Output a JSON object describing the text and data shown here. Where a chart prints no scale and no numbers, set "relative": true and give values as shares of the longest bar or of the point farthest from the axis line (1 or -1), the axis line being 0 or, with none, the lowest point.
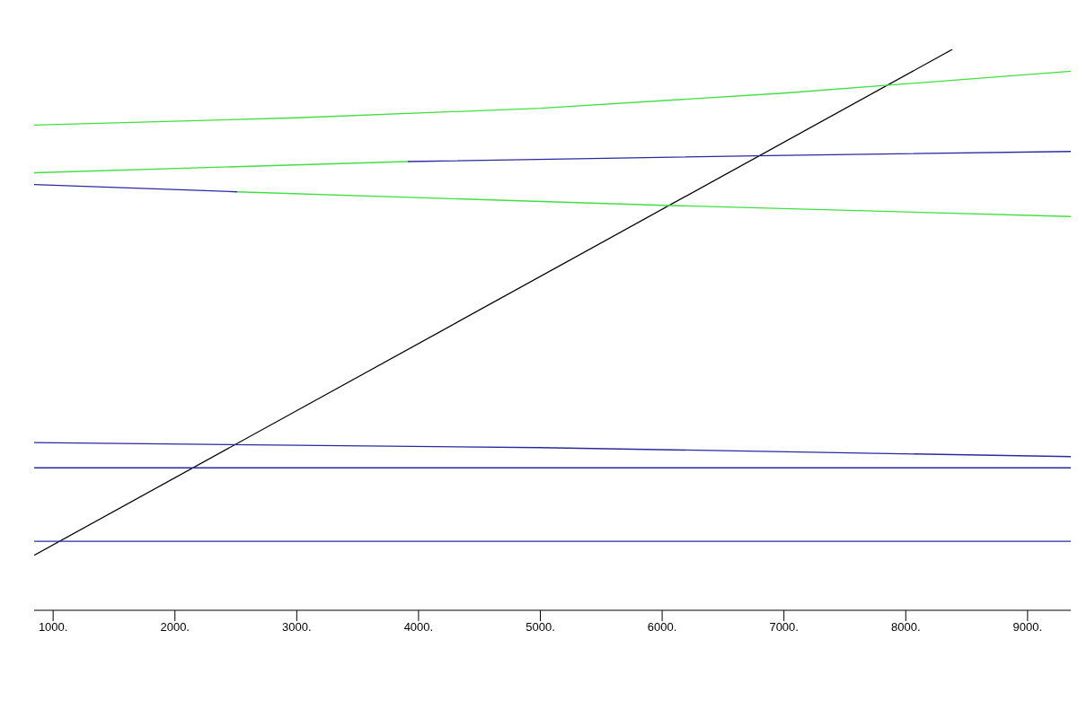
{
  "chart_data": {
    "type": "line",
    "relative": true,
    "xlim": [
      844,
      9355
    ],
    "xticks": [
      {
        "value": 1000,
        "label": "1000."
      },
      {
        "value": 2000,
        "label": "2000."
      },
      {
        "value": 3000,
        "label": "3000."
      },
      {
        "value": 4000,
        "label": "4000."
      },
      {
        "value": 5000,
        "label": "5000."
      },
      {
        "value": 6000,
        "label": "6000."
      },
      {
        "value": 7000,
        "label": "7000."
      },
      {
        "value": 8000,
        "label": "8000."
      },
      {
        "value": 9000,
        "label": "9000."
      }
    ],
    "grid": false,
    "marker": "none",
    "line_style": "solid",
    "series": [
      {
        "color": "#000000",
        "x": [
          844,
          8383
        ],
        "values": [
          0.098,
          1.0
        ]
      },
      {
        "color": "#40e040",
        "x": [
          844,
          3000,
          5000,
          7000,
          9355
        ],
        "values": [
          0.865,
          0.878,
          0.895,
          0.922,
          0.961
        ]
      },
      {
        "color": "#40e040",
        "x": [
          844,
          3910
        ],
        "values": [
          0.78,
          0.8
        ]
      },
      {
        "color": "#2a2aa0",
        "x": [
          3910,
          7000,
          9355
        ],
        "values": [
          0.8,
          0.811,
          0.818
        ]
      },
      {
        "color": "#2a2aa0",
        "x": [
          844,
          2511
        ],
        "values": [
          0.759,
          0.746
        ]
      },
      {
        "color": "#40e040",
        "x": [
          2511,
          6000,
          9355
        ],
        "values": [
          0.746,
          0.722,
          0.702
        ]
      },
      {
        "color": "#2a2aa0",
        "x": [
          844,
          5000,
          9355
        ],
        "values": [
          0.299,
          0.29,
          0.274
        ]
      },
      {
        "color": "#2a2aa0",
        "x": [
          844,
          9355
        ],
        "values": [
          0.254,
          0.254
        ]
      },
      {
        "color": "#2a2aa0",
        "x": [
          844,
          9355
        ],
        "values": [
          0.123,
          0.123
        ]
      }
    ]
  }
}
